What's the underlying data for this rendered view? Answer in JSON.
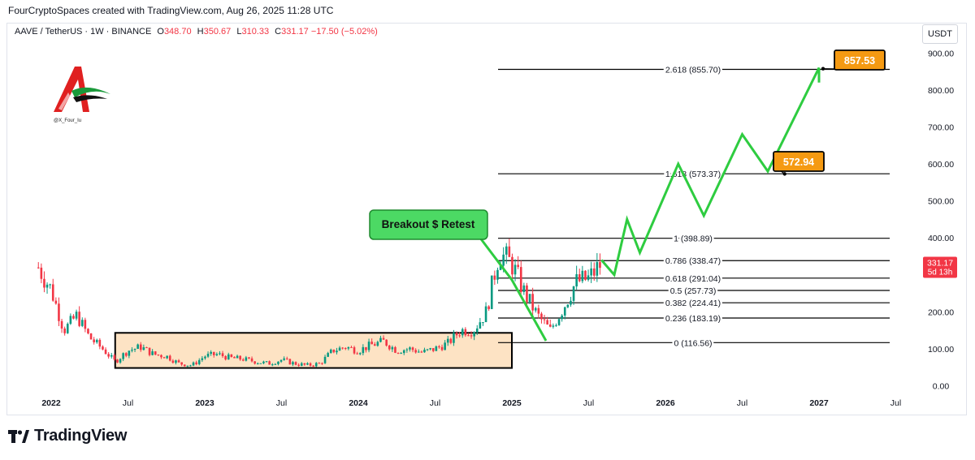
{
  "header": {
    "attribution": "FourCryptoSpaces created with TradingView.com, Aug 26, 2025 11:28 UTC"
  },
  "legend": {
    "symbol": "AAVE / TetherUS · 1W · BINANCE",
    "open_label": "O",
    "open": "348.70",
    "high_label": "H",
    "high": "350.67",
    "low_label": "L",
    "low": "310.33",
    "close_label": "C",
    "close": "331.17",
    "change": "−17.50 (−5.02%)"
  },
  "currency_button": "USDT",
  "watermark": {
    "handle": "@X_Four_Iu"
  },
  "footer": {
    "logo_text": "TradingView"
  },
  "colors": {
    "up": "#089981",
    "down": "#f23645",
    "projection": "#2ecc40",
    "box_fill": "#fde3c4",
    "label_orange": "#f59a12",
    "callout_green": "#4cd964"
  },
  "chart_data": {
    "type": "candlestick",
    "ylim": [
      -10,
      960
    ],
    "y_ticks": [
      "0.00",
      "100.00",
      "200.00",
      "300.00",
      "400.00",
      "500.00",
      "600.00",
      "700.00",
      "800.00",
      "900.00"
    ],
    "y_tick_values": [
      0,
      100,
      200,
      300,
      400,
      500,
      600,
      700,
      800,
      900
    ],
    "x_ticks": [
      "2022",
      "Jul",
      "2023",
      "Jul",
      "2024",
      "Jul",
      "2025",
      "Jul",
      "2026",
      "Jul",
      "2027",
      "Jul"
    ],
    "x_tick_dates": [
      "2022-01",
      "2022-07",
      "2023-01",
      "2023-07",
      "2024-01",
      "2024-07",
      "2025-01",
      "2025-07",
      "2026-01",
      "2026-07",
      "2027-01",
      "2027-07"
    ],
    "current_price": {
      "value": 331.17,
      "label": "331.17",
      "countdown": "5d 13h"
    },
    "fib_levels": [
      {
        "ratio": "2.618",
        "price": 855.7,
        "label": "2.618 (855.70)"
      },
      {
        "ratio": "1.618",
        "price": 573.37,
        "label": "1.618 (573.37)"
      },
      {
        "ratio": "1",
        "price": 398.89,
        "label": "1 (398.89)"
      },
      {
        "ratio": "0.786",
        "price": 338.47,
        "label": "0.786 (338.47)"
      },
      {
        "ratio": "0.618",
        "price": 291.04,
        "label": "0.618 (291.04)"
      },
      {
        "ratio": "0.5",
        "price": 257.73,
        "label": "0.5 (257.73)"
      },
      {
        "ratio": "0.382",
        "price": 224.41,
        "label": "0.382 (224.41)"
      },
      {
        "ratio": "0.236",
        "price": 183.19,
        "label": "0.236 (183.19)"
      },
      {
        "ratio": "0",
        "price": 116.56,
        "label": "0 (116.56)"
      }
    ],
    "targets": [
      {
        "label": "857.53",
        "value": 857.53,
        "date": "2027-01"
      },
      {
        "label": "572.94",
        "value": 572.94,
        "date": "2026-10"
      }
    ],
    "annotation": "Breakout $ Retest",
    "accumulation_box": {
      "from": "2022-06",
      "to": "2025-01",
      "low": 48,
      "high": 143
    },
    "price_path": [
      [
        "2021-12",
        320
      ],
      [
        "2022-01",
        260
      ],
      [
        "2022-02",
        150
      ],
      [
        "2022-03",
        190
      ],
      [
        "2022-04",
        130
      ],
      [
        "2022-05",
        100
      ],
      [
        "2022-06",
        65
      ],
      [
        "2022-07",
        95
      ],
      [
        "2022-08",
        105
      ],
      [
        "2022-09",
        85
      ],
      [
        "2022-10",
        80
      ],
      [
        "2022-11",
        60
      ],
      [
        "2022-12",
        55
      ],
      [
        "2023-01",
        80
      ],
      [
        "2023-02",
        85
      ],
      [
        "2023-03",
        75
      ],
      [
        "2023-04",
        72
      ],
      [
        "2023-05",
        65
      ],
      [
        "2023-06",
        60
      ],
      [
        "2023-07",
        70
      ],
      [
        "2023-08",
        60
      ],
      [
        "2023-09",
        55
      ],
      [
        "2023-10",
        60
      ],
      [
        "2023-11",
        95
      ],
      [
        "2023-12",
        105
      ],
      [
        "2024-01",
        95
      ],
      [
        "2024-02",
        110
      ],
      [
        "2024-03",
        120
      ],
      [
        "2024-04",
        95
      ],
      [
        "2024-05",
        100
      ],
      [
        "2024-06",
        90
      ],
      [
        "2024-07",
        100
      ],
      [
        "2024-08",
        115
      ],
      [
        "2024-09",
        150
      ],
      [
        "2024-10",
        150
      ],
      [
        "2024-11",
        200
      ],
      [
        "2024-12",
        360
      ],
      [
        "2025-01",
        330
      ],
      [
        "2025-02",
        250
      ],
      [
        "2025-03",
        190
      ],
      [
        "2025-04",
        150
      ],
      [
        "2025-05",
        210
      ],
      [
        "2025-06",
        280
      ],
      [
        "2025-07",
        290
      ],
      [
        "2025-08",
        331
      ]
    ],
    "projection_path": [
      [
        "2025-08",
        340
      ],
      [
        "2025-09",
        300
      ],
      [
        "2025-10",
        450
      ],
      [
        "2025-11",
        360
      ],
      [
        "2026-02",
        600
      ],
      [
        "2026-04",
        460
      ],
      [
        "2026-07",
        680
      ],
      [
        "2026-09",
        580
      ],
      [
        "2027-01",
        860
      ],
      [
        "2027-01",
        820
      ]
    ]
  }
}
